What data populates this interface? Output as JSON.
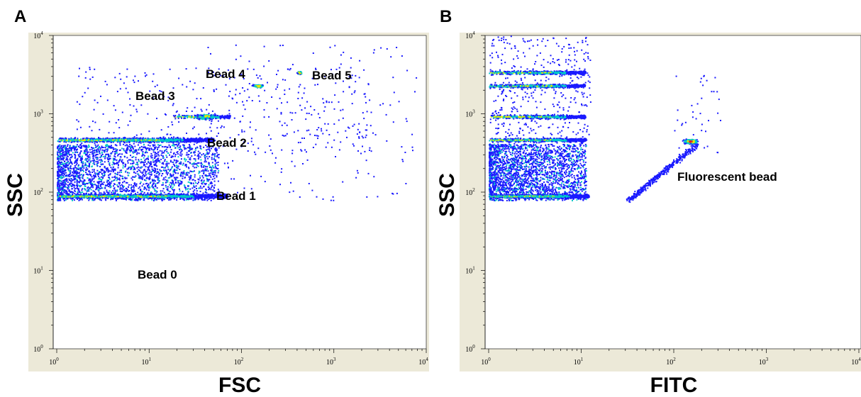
{
  "chart_data": [
    {
      "type": "scatter",
      "panel_label": "A",
      "xlabel": "FSC",
      "ylabel": "SSC",
      "xscale": "log",
      "yscale": "log",
      "xlim": [
        1,
        10000
      ],
      "ylim": [
        1,
        10000
      ],
      "tick_base": "10",
      "tick_exponents": [
        "0",
        "1",
        "2",
        "3",
        "4"
      ],
      "clusters": [
        {
          "label": "Bead 0",
          "x": 10,
          "y": 10
        },
        {
          "label": "Bead 1",
          "x_range": [
            1,
            70
          ],
          "y": 90
        },
        {
          "label": "Bead 2",
          "x_range": [
            1,
            50
          ],
          "y": 470
        },
        {
          "label": "Bead 3",
          "x_range": [
            18,
            75
          ],
          "y": 930
        },
        {
          "label": "Bead 4",
          "x": 150,
          "y": 2300
        },
        {
          "label": "Bead 5",
          "x": 420,
          "y": 3400
        }
      ]
    },
    {
      "type": "scatter",
      "panel_label": "B",
      "xlabel": "FITC",
      "ylabel": "SSC",
      "xscale": "log",
      "yscale": "log",
      "xlim": [
        1,
        10000
      ],
      "ylim": [
        1,
        10000
      ],
      "tick_base": "10",
      "tick_exponents": [
        "0",
        "1",
        "2",
        "3",
        "4"
      ],
      "clusters": [
        {
          "label": "",
          "x_range": [
            1,
            12
          ],
          "y": 90
        },
        {
          "label": "",
          "x_range": [
            1,
            11
          ],
          "y": 470
        },
        {
          "label": "",
          "x_range": [
            1,
            11
          ],
          "y": 930
        },
        {
          "label": "",
          "x_range": [
            1,
            11
          ],
          "y": 2300
        },
        {
          "label": "",
          "x_range": [
            1,
            11
          ],
          "y": 3400
        },
        {
          "label": "Fluorescent bead",
          "x": 150,
          "y": 450
        }
      ]
    }
  ],
  "colors": {
    "frame": "#ece9d8",
    "density_low": "#1a1aff",
    "density_mid": "#00c8c8",
    "density_high": "#e8e800",
    "density_peak": "#e02020"
  }
}
